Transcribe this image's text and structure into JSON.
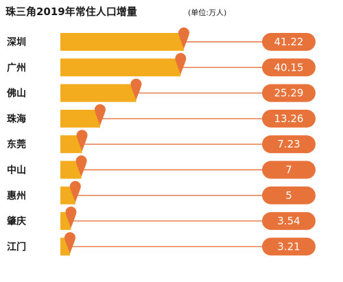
{
  "chart_data": {
    "type": "bar",
    "orientation": "horizontal",
    "title": "珠三角2019年常住人口增量",
    "unit": "(单位:万人)",
    "categories": [
      "深圳",
      "广州",
      "佛山",
      "珠海",
      "东莞",
      "中山",
      "惠州",
      "肇庆",
      "江门"
    ],
    "values": [
      41.22,
      40.15,
      25.29,
      13.26,
      7.23,
      7,
      5,
      3.54,
      3.21
    ],
    "value_labels": [
      "41.22",
      "40.15",
      "25.29",
      "13.26",
      "7.23",
      "7",
      "5",
      "3.54",
      "3.21"
    ],
    "bar_color": "#f2ac1e",
    "pin_color": "#e8733a",
    "label_pill_color": "#e8733a",
    "leader_line_color": "#e8733a",
    "xlim": [
      0,
      41.22
    ],
    "grid": false,
    "legend": "none"
  }
}
